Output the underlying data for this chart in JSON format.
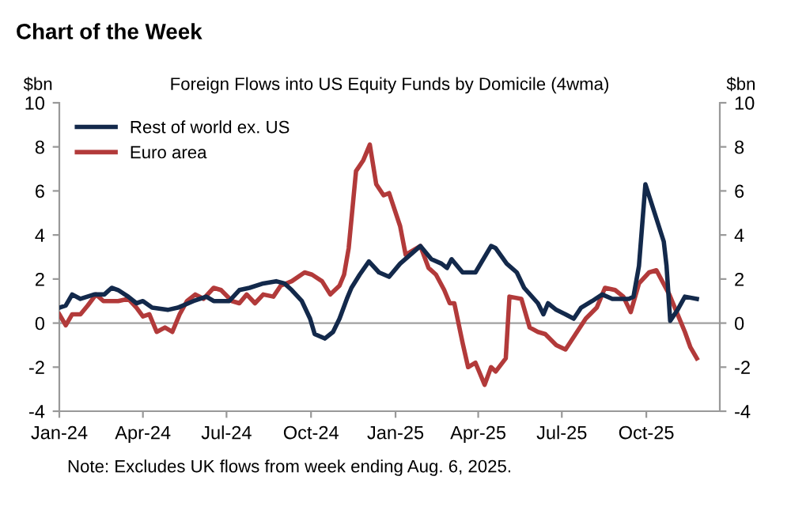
{
  "chart_data": {
    "type": "line",
    "title": "Chart of the Week",
    "subtitle": "Foreign Flows into US Equity Funds by Domicile (4wma)",
    "ylabel": "$bn",
    "y2label": "$bn",
    "annotations": [
      "Note: Excludes UK flows from week ending Aug. 6, 2025."
    ],
    "xlim": [
      "2024-01-01",
      "2025-12-20"
    ],
    "xticks": [
      {
        "value": "2024-01-01",
        "label": "Jan-24"
      },
      {
        "value": "2024-04-01",
        "label": "Apr-24"
      },
      {
        "value": "2024-07-01",
        "label": "Jul-24"
      },
      {
        "value": "2024-10-01",
        "label": "Oct-24"
      },
      {
        "value": "2025-01-01",
        "label": "Jan-25"
      },
      {
        "value": "2025-04-01",
        "label": "Apr-25"
      },
      {
        "value": "2025-07-01",
        "label": "Jul-25"
      },
      {
        "value": "2025-10-01",
        "label": "Oct-25"
      }
    ],
    "ylim": [
      -4,
      10
    ],
    "yticks": [
      -4,
      -2,
      0,
      2,
      4,
      6,
      8,
      10
    ],
    "y2lim": [
      -4,
      10
    ],
    "y2ticks": [
      -4,
      -2,
      0,
      2,
      4,
      6,
      8,
      10
    ],
    "ref_lines": [
      {
        "axis": "y",
        "value": 0,
        "color": "#a0a0a0"
      }
    ],
    "grid": false,
    "legend": "top left",
    "line_style": "solid",
    "marker": "none",
    "series": [
      {
        "name": "Rest of world ex. US",
        "color": "#13294b",
        "x": [
          "2024-01-01",
          "2024-01-08",
          "2024-01-15",
          "2024-01-24",
          "2024-02-08",
          "2024-02-19",
          "2024-02-27",
          "2024-03-05",
          "2024-03-16",
          "2024-03-25",
          "2024-04-01",
          "2024-04-11",
          "2024-04-28",
          "2024-05-09",
          "2024-05-26",
          "2024-06-09",
          "2024-06-17",
          "2024-07-04",
          "2024-07-15",
          "2024-07-26",
          "2024-08-10",
          "2024-08-24",
          "2024-09-02",
          "2024-09-10",
          "2024-09-21",
          "2024-09-30",
          "2024-10-05",
          "2024-10-16",
          "2024-10-25",
          "2024-11-01",
          "2024-11-09",
          "2024-11-14",
          "2024-11-23",
          "2024-12-03",
          "2024-12-14",
          "2024-12-25",
          "2025-01-06",
          "2025-01-28",
          "2025-02-09",
          "2025-02-20",
          "2025-02-26",
          "2025-03-03",
          "2025-03-15",
          "2025-03-29",
          "2025-04-15",
          "2025-04-20",
          "2025-05-02",
          "2025-05-13",
          "2025-05-21",
          "2025-06-05",
          "2025-06-11",
          "2025-06-16",
          "2025-06-25",
          "2025-07-05",
          "2025-07-14",
          "2025-07-22",
          "2025-08-03",
          "2025-08-14",
          "2025-08-25",
          "2025-09-12",
          "2025-09-17",
          "2025-09-23",
          "2025-09-30",
          "2025-10-20",
          "2025-10-23",
          "2025-10-27",
          "2025-11-04",
          "2025-11-12",
          "2025-11-25"
        ],
        "values": [
          0.7,
          0.8,
          1.3,
          1.1,
          1.3,
          1.3,
          1.6,
          1.5,
          1.2,
          0.9,
          1.0,
          0.7,
          0.6,
          0.7,
          1.0,
          1.2,
          1.0,
          1.0,
          1.5,
          1.6,
          1.8,
          1.9,
          1.8,
          1.5,
          1.0,
          0.2,
          -0.5,
          -0.7,
          -0.4,
          0.2,
          1.1,
          1.6,
          2.2,
          2.8,
          2.3,
          2.1,
          2.7,
          3.5,
          2.9,
          2.7,
          2.5,
          2.9,
          2.3,
          2.3,
          3.5,
          3.4,
          2.7,
          2.3,
          1.6,
          0.9,
          0.4,
          0.9,
          0.6,
          0.4,
          0.2,
          0.7,
          1.0,
          1.3,
          1.1,
          1.1,
          1.2,
          2.6,
          6.3,
          3.7,
          2.6,
          0.1,
          0.6,
          1.2,
          1.1
        ]
      },
      {
        "name": "Euro area",
        "color": "#b23a3a",
        "x": [
          "2024-01-01",
          "2024-01-08",
          "2024-01-15",
          "2024-01-24",
          "2024-02-01",
          "2024-02-10",
          "2024-02-18",
          "2024-03-05",
          "2024-03-16",
          "2024-03-25",
          "2024-04-01",
          "2024-04-08",
          "2024-04-16",
          "2024-04-25",
          "2024-05-03",
          "2024-05-11",
          "2024-05-19",
          "2024-05-28",
          "2024-06-06",
          "2024-06-17",
          "2024-06-25",
          "2024-07-07",
          "2024-07-15",
          "2024-07-23",
          "2024-08-01",
          "2024-08-10",
          "2024-08-21",
          "2024-08-29",
          "2024-09-10",
          "2024-09-24",
          "2024-10-02",
          "2024-10-13",
          "2024-10-22",
          "2024-11-01",
          "2024-11-06",
          "2024-11-11",
          "2024-11-19",
          "2024-11-27",
          "2024-12-04",
          "2024-12-11",
          "2024-12-19",
          "2024-12-25",
          "2025-01-06",
          "2025-01-12",
          "2025-01-28",
          "2025-02-06",
          "2025-02-14",
          "2025-02-23",
          "2025-03-01",
          "2025-03-06",
          "2025-03-15",
          "2025-03-21",
          "2025-03-29",
          "2025-04-08",
          "2025-04-15",
          "2025-04-20",
          "2025-05-01",
          "2025-05-05",
          "2025-05-18",
          "2025-05-27",
          "2025-06-05",
          "2025-06-13",
          "2025-06-25",
          "2025-07-05",
          "2025-07-16",
          "2025-07-27",
          "2025-08-08",
          "2025-08-17",
          "2025-08-28",
          "2025-09-06",
          "2025-09-14",
          "2025-09-23",
          "2025-10-04",
          "2025-10-12",
          "2025-10-26",
          "2025-11-04",
          "2025-11-12",
          "2025-11-18",
          "2025-11-25"
        ],
        "values": [
          0.4,
          -0.1,
          0.4,
          0.4,
          0.8,
          1.3,
          1.0,
          1.0,
          1.1,
          0.7,
          0.3,
          0.4,
          -0.4,
          -0.2,
          -0.4,
          0.4,
          1.0,
          1.3,
          1.1,
          1.6,
          1.5,
          1.0,
          0.9,
          1.3,
          0.9,
          1.3,
          1.2,
          1.7,
          1.9,
          2.3,
          2.2,
          1.9,
          1.3,
          1.7,
          2.2,
          3.4,
          6.9,
          7.4,
          8.1,
          6.3,
          5.8,
          5.9,
          4.4,
          3.1,
          3.5,
          2.5,
          2.2,
          1.5,
          0.9,
          0.9,
          -0.9,
          -2.0,
          -1.8,
          -2.8,
          -2.0,
          -2.2,
          -1.6,
          1.2,
          1.1,
          -0.2,
          -0.4,
          -0.5,
          -1.0,
          -1.2,
          -0.5,
          0.2,
          0.7,
          1.6,
          1.5,
          1.2,
          0.5,
          1.8,
          2.3,
          2.4,
          1.3,
          0.4,
          -0.4,
          -1.1,
          -1.6
        ]
      }
    ]
  }
}
